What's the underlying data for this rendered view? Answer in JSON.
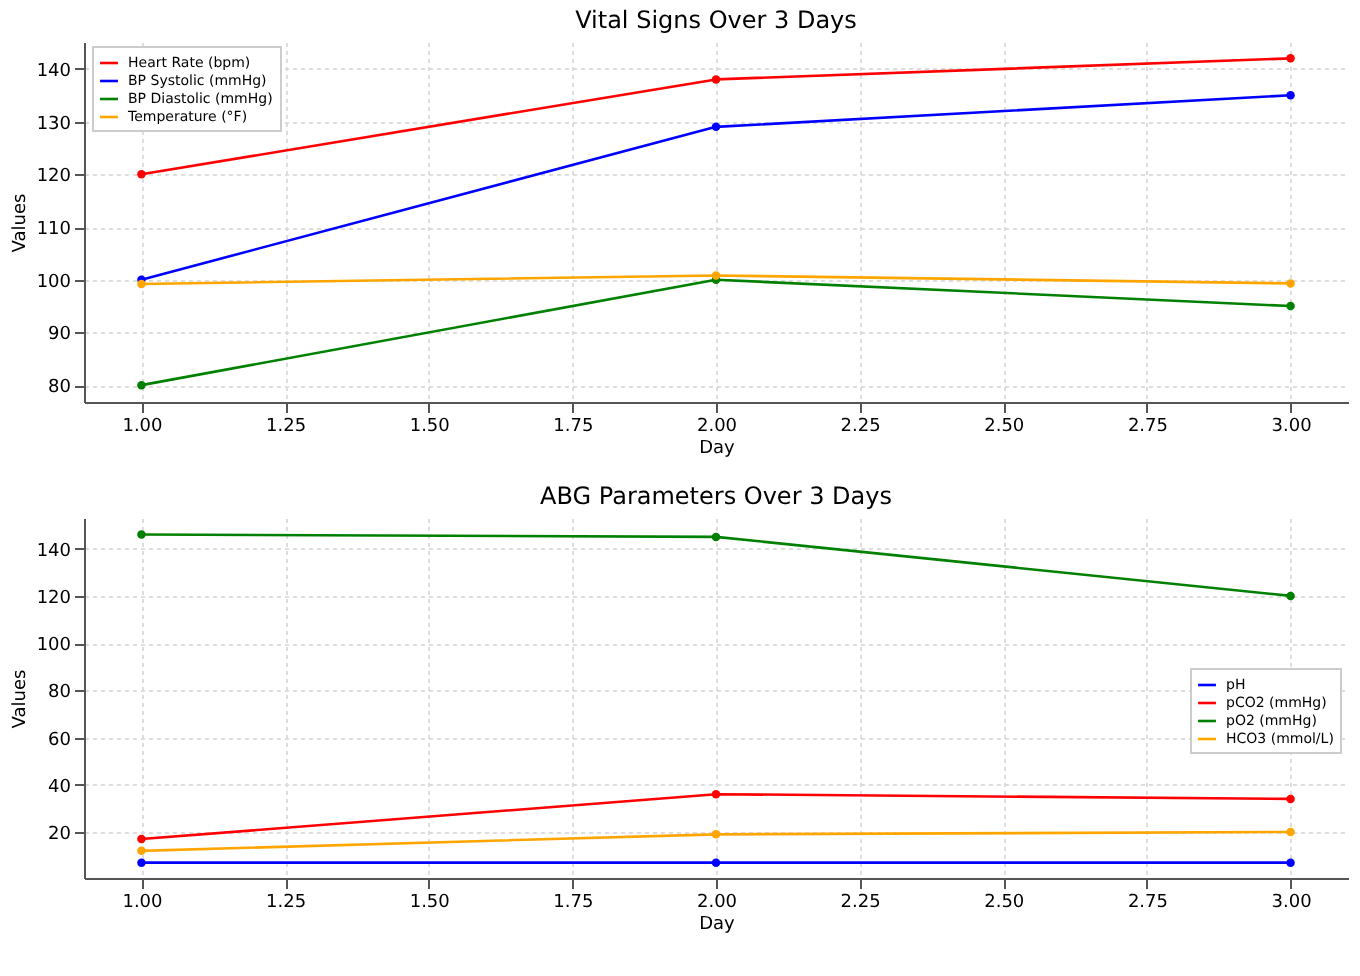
{
  "chart_data": [
    {
      "type": "line",
      "title": "Vital Signs Over 3 Days",
      "xlabel": "Day",
      "ylabel": "Values",
      "x": [
        1,
        2,
        3
      ],
      "xlim": [
        0.9,
        3.1
      ],
      "xticks": [
        {
          "value": 1,
          "label": "1.00"
        },
        {
          "value": 1.25,
          "label": "1.25"
        },
        {
          "value": 1.5,
          "label": "1.50"
        },
        {
          "value": 1.75,
          "label": "1.75"
        },
        {
          "value": 2,
          "label": "2.00"
        },
        {
          "value": 2.25,
          "label": "2.25"
        },
        {
          "value": 2.5,
          "label": "2.50"
        },
        {
          "value": 2.75,
          "label": "2.75"
        },
        {
          "value": 3,
          "label": "3.00"
        }
      ],
      "ylim": [
        76.8,
        145.1
      ],
      "yticks": [
        80,
        90,
        100,
        110,
        120,
        130,
        140
      ],
      "grid": true,
      "legend": "top left",
      "marker": "circle",
      "line_style": "solid",
      "series": [
        {
          "name": "Heart Rate (bpm)",
          "color": "#ff0000",
          "values": [
            120,
            138,
            142
          ]
        },
        {
          "name": "BP Systolic (mmHg)",
          "color": "#0000ff",
          "values": [
            100,
            129,
            135
          ]
        },
        {
          "name": "BP Diastolic (mmHg)",
          "color": "#008000",
          "values": [
            80,
            100,
            95
          ]
        },
        {
          "name": "Temperature (°F)",
          "color": "#ffa500",
          "values": [
            99.2,
            100.8,
            99.3
          ]
        }
      ]
    },
    {
      "type": "line",
      "title": "ABG Parameters Over 3 Days",
      "xlabel": "Day",
      "ylabel": "Values",
      "x": [
        1,
        2,
        3
      ],
      "xlim": [
        0.9,
        3.1
      ],
      "xticks": [
        {
          "value": 1,
          "label": "1.00"
        },
        {
          "value": 1.25,
          "label": "1.25"
        },
        {
          "value": 1.5,
          "label": "1.50"
        },
        {
          "value": 1.75,
          "label": "1.75"
        },
        {
          "value": 2,
          "label": "2.00"
        },
        {
          "value": 2.25,
          "label": "2.25"
        },
        {
          "value": 2.5,
          "label": "2.50"
        },
        {
          "value": 2.75,
          "label": "2.75"
        },
        {
          "value": 3,
          "label": "3.00"
        }
      ],
      "ylim": [
        0.5,
        153
      ],
      "yticks": [
        20,
        40,
        60,
        80,
        100,
        120,
        140
      ],
      "grid": true,
      "legend": "right",
      "marker": "circle",
      "line_style": "solid",
      "series": [
        {
          "name": "pH",
          "color": "#0000ff",
          "values": [
            7,
            7,
            7
          ]
        },
        {
          "name": "pCO2 (mmHg)",
          "color": "#ff0000",
          "values": [
            17,
            36,
            34
          ]
        },
        {
          "name": "pO2 (mmHg)",
          "color": "#008000",
          "values": [
            146,
            145,
            120
          ]
        },
        {
          "name": "HCO3 (mmol/L)",
          "color": "#ffa500",
          "values": [
            12,
            19,
            20
          ]
        }
      ]
    }
  ]
}
